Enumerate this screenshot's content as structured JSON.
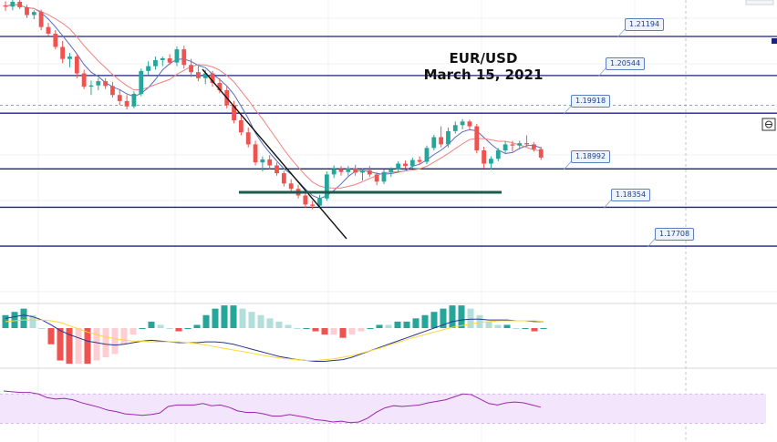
{
  "title": "EUR/USD",
  "subtitle": "March 15, 2021",
  "colors": {
    "bull": "#26a69a",
    "bear": "#ef5350",
    "level_line": "#1a237e",
    "ma_fast": "#5c6bc0",
    "ma_slow": "#f08080",
    "macd": "#283593",
    "signal": "#fdd835",
    "rsi_line": "#9c27b0",
    "rsi_band": "#f3e5fc",
    "support": "#1e5b4f",
    "trend": "#111111"
  },
  "chart_data": [
    {
      "type": "candlestick",
      "title": "EUR/USD",
      "subtitle": "March 15, 2021",
      "ylim": [
        1.168,
        1.218
      ],
      "levels": [
        "1.21194",
        "1.20544",
        "1.19918",
        "1.18992",
        "1.18354",
        "1.17708"
      ],
      "level_values": [
        1.21194,
        1.20544,
        1.19918,
        1.18992,
        1.18354,
        1.17708
      ],
      "current_price_dashed": 1.2005,
      "candles": [
        [
          1.2171,
          1.2178,
          1.2162,
          1.2169
        ],
        [
          1.2169,
          1.2183,
          1.2163,
          1.2177
        ],
        [
          1.2177,
          1.2185,
          1.2165,
          1.2168
        ],
        [
          1.2168,
          1.2172,
          1.215,
          1.2155
        ],
        [
          1.2155,
          1.2163,
          1.2148,
          1.216
        ],
        [
          1.216,
          1.2164,
          1.213,
          1.2135
        ],
        [
          1.2135,
          1.2142,
          1.212,
          1.2124
        ],
        [
          1.2124,
          1.213,
          1.2098,
          1.2102
        ],
        [
          1.2102,
          1.2112,
          1.2075,
          1.2082
        ],
        [
          1.2082,
          1.2092,
          1.2068,
          1.2086
        ],
        [
          1.2086,
          1.209,
          1.205,
          1.2058
        ],
        [
          1.2058,
          1.2064,
          1.2032,
          1.2036
        ],
        [
          1.2036,
          1.2046,
          1.2022,
          1.2038
        ],
        [
          1.2038,
          1.205,
          1.203,
          1.2045
        ],
        [
          1.2045,
          1.205,
          1.2032,
          1.2037
        ],
        [
          1.2037,
          1.2044,
          1.2018,
          1.2022
        ],
        [
          1.2022,
          1.203,
          1.2005,
          1.2012
        ],
        [
          1.2012,
          1.2022,
          1.1998,
          1.2003
        ],
        [
          1.2003,
          1.2028,
          1.2,
          1.2024
        ],
        [
          1.2024,
          1.2066,
          1.202,
          1.2062
        ],
        [
          1.2062,
          1.2078,
          1.2055,
          1.207
        ],
        [
          1.207,
          1.2086,
          1.2064,
          1.208
        ],
        [
          1.208,
          1.2086,
          1.207,
          1.2083
        ],
        [
          1.2083,
          1.209,
          1.2072,
          1.2076
        ],
        [
          1.2076,
          1.2103,
          1.207,
          1.2098
        ],
        [
          1.2098,
          1.2104,
          1.2066,
          1.2072
        ],
        [
          1.2072,
          1.2082,
          1.2052,
          1.206
        ],
        [
          1.206,
          1.207,
          1.2045,
          1.205
        ],
        [
          1.205,
          1.2064,
          1.204,
          1.2058
        ],
        [
          1.2058,
          1.2062,
          1.2036,
          1.2042
        ],
        [
          1.2042,
          1.205,
          1.2025,
          1.203
        ],
        [
          1.203,
          1.2037,
          1.2,
          1.2005
        ],
        [
          1.2005,
          1.2012,
          1.1975,
          1.198
        ],
        [
          1.198,
          1.1988,
          1.1955,
          1.196
        ],
        [
          1.196,
          1.1968,
          1.1935,
          1.194
        ],
        [
          1.194,
          1.1946,
          1.1905,
          1.191
        ],
        [
          1.191,
          1.192,
          1.1895,
          1.1915
        ],
        [
          1.1915,
          1.1922,
          1.1898,
          1.1905
        ],
        [
          1.1905,
          1.191,
          1.1888,
          1.1892
        ],
        [
          1.1892,
          1.1896,
          1.187,
          1.1875
        ],
        [
          1.1875,
          1.1882,
          1.186,
          1.1866
        ],
        [
          1.1866,
          1.1873,
          1.185,
          1.1855
        ],
        [
          1.1855,
          1.1862,
          1.1835,
          1.184
        ],
        [
          1.184,
          1.1846,
          1.1832,
          1.1838
        ],
        [
          1.1838,
          1.1856,
          1.1834,
          1.185
        ],
        [
          1.185,
          1.1895,
          1.1846,
          1.189
        ],
        [
          1.189,
          1.1905,
          1.1884,
          1.1899
        ],
        [
          1.1899,
          1.1904,
          1.1888,
          1.1894
        ],
        [
          1.1894,
          1.1904,
          1.1888,
          1.19
        ],
        [
          1.19,
          1.1906,
          1.1888,
          1.1893
        ],
        [
          1.1893,
          1.19,
          1.188,
          1.1897
        ],
        [
          1.1897,
          1.1904,
          1.1886,
          1.189
        ],
        [
          1.189,
          1.1894,
          1.1872,
          1.1878
        ],
        [
          1.1878,
          1.1898,
          1.1874,
          1.1894
        ],
        [
          1.1894,
          1.1902,
          1.1886,
          1.1898
        ],
        [
          1.1898,
          1.1912,
          1.1894,
          1.1908
        ],
        [
          1.1908,
          1.1913,
          1.19,
          1.1904
        ],
        [
          1.1904,
          1.1918,
          1.19,
          1.1914
        ],
        [
          1.1914,
          1.192,
          1.1906,
          1.1911
        ],
        [
          1.1911,
          1.1938,
          1.1907,
          1.1934
        ],
        [
          1.1934,
          1.1956,
          1.193,
          1.1952
        ],
        [
          1.1952,
          1.197,
          1.1935,
          1.194
        ],
        [
          1.194,
          1.1968,
          1.1935,
          1.1962
        ],
        [
          1.1962,
          1.1978,
          1.1958,
          1.1972
        ],
        [
          1.1972,
          1.1982,
          1.1965,
          1.1978
        ],
        [
          1.1978,
          1.1981,
          1.1964,
          1.197
        ],
        [
          1.197,
          1.1974,
          1.1925,
          1.193
        ],
        [
          1.193,
          1.1936,
          1.19,
          1.1908
        ],
        [
          1.1908,
          1.192,
          1.1898,
          1.1916
        ],
        [
          1.1916,
          1.1934,
          1.1912,
          1.193
        ],
        [
          1.193,
          1.1945,
          1.1926,
          1.194
        ],
        [
          1.194,
          1.1946,
          1.1928,
          1.1938
        ],
        [
          1.1938,
          1.1946,
          1.1932,
          1.1942
        ],
        [
          1.1942,
          1.1955,
          1.1936,
          1.194
        ],
        [
          1.194,
          1.1944,
          1.1928,
          1.1932
        ],
        [
          1.1932,
          1.1936,
          1.1914,
          1.1918
        ]
      ],
      "macd": [
        0.0012,
        0.0014,
        0.0016,
        0.0014,
        0.001,
        0.0004,
        -0.0003,
        -0.0008,
        -0.0012,
        -0.0016,
        -0.0018,
        -0.002,
        -0.0021,
        -0.002,
        -0.0018,
        -0.0016,
        -0.0015,
        -0.0016,
        -0.0017,
        -0.0018,
        -0.0018,
        -0.0018,
        -0.0017,
        -0.0017,
        -0.0018,
        -0.002,
        -0.0023,
        -0.0026,
        -0.0029,
        -0.0032,
        -0.0035,
        -0.0037,
        -0.0039,
        -0.004,
        -0.0041,
        -0.0041,
        -0.004,
        -0.0039,
        -0.0036,
        -0.0032,
        -0.0028,
        -0.0024,
        -0.002,
        -0.0016,
        -0.0012,
        -0.0008,
        -0.0004,
        0.0,
        0.0004,
        0.0008,
        0.001,
        0.0011,
        0.0011,
        0.001,
        0.001,
        0.001,
        0.0009,
        0.0009,
        0.0008,
        0.0008
      ],
      "signal": [
        0.0008,
        0.0009,
        0.001,
        0.001,
        0.001,
        0.0009,
        0.0007,
        0.0003,
        -0.0001,
        -0.0005,
        -0.0008,
        -0.0011,
        -0.0013,
        -0.0015,
        -0.0016,
        -0.0016,
        -0.0017,
        -0.0017,
        -0.0017,
        -0.0017,
        -0.0018,
        -0.0019,
        -0.0021,
        -0.0023,
        -0.0025,
        -0.0027,
        -0.0029,
        -0.0031,
        -0.0033,
        -0.0035,
        -0.0037,
        -0.0038,
        -0.0039,
        -0.004,
        -0.004,
        -0.0039,
        -0.0038,
        -0.0036,
        -0.0034,
        -0.0031,
        -0.0028,
        -0.0025,
        -0.0021,
        -0.0018,
        -0.0014,
        -0.0011,
        -0.0008,
        -0.0005,
        -0.0002,
        0.0001,
        0.0003,
        0.0005,
        0.0007,
        0.0008,
        0.0009,
        0.0009,
        0.0009,
        0.0009,
        0.0009,
        0.0008
      ],
      "rsi_band": [
        30,
        70
      ],
      "rsi": [
        74,
        73,
        72,
        72,
        70,
        65,
        63,
        64,
        62,
        58,
        55,
        52,
        48,
        46,
        43,
        42,
        41,
        42,
        44,
        53,
        55,
        55,
        55,
        57,
        54,
        55,
        52,
        47,
        45,
        45,
        43,
        40,
        40,
        42,
        40,
        38,
        35,
        34,
        32,
        33,
        31,
        32,
        37,
        45,
        51,
        54,
        53,
        54,
        55,
        58,
        60,
        62,
        66,
        70,
        69,
        63,
        57,
        55,
        58,
        59,
        58,
        55,
        52
      ]
    }
  ]
}
